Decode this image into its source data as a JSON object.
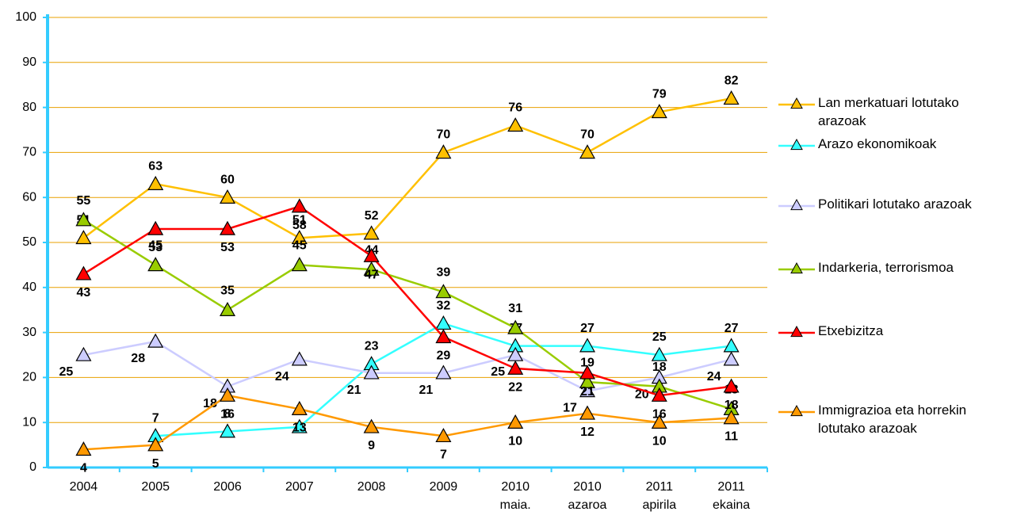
{
  "chart_data": {
    "type": "line",
    "categories": [
      [
        "2004"
      ],
      [
        "2005"
      ],
      [
        "2006"
      ],
      [
        "2007"
      ],
      [
        "2008"
      ],
      [
        "2009"
      ],
      [
        "2010",
        "maia."
      ],
      [
        "2010",
        "azaroa"
      ],
      [
        "2011",
        "apirila"
      ],
      [
        "2011",
        "ekaina"
      ]
    ],
    "series": [
      {
        "name": "Lan merkatuari lotutako arazoak",
        "color": "#ffc000",
        "values": [
          51,
          63,
          60,
          51,
          52,
          70,
          76,
          70,
          79,
          82
        ]
      },
      {
        "name": "Arazo ekonomikoak",
        "color": "#33ffff",
        "values": [
          null,
          7,
          8,
          9,
          23,
          32,
          27,
          27,
          25,
          27
        ]
      },
      {
        "name": "Politikari lotutako arazoak",
        "color": "#ccccff",
        "values": [
          25,
          28,
          18,
          24,
          21,
          21,
          25,
          17,
          20,
          24
        ]
      },
      {
        "name": "Indarkeria, terrorismoa",
        "color": "#99cc00",
        "values": [
          55,
          45,
          35,
          45,
          44,
          39,
          31,
          19,
          18,
          13
        ]
      },
      {
        "name": "Etxebizitza",
        "color": "#ff0000",
        "values": [
          43,
          53,
          53,
          58,
          47,
          29,
          22,
          21,
          16,
          18
        ]
      },
      {
        "name": "Immigrazioa eta horrekin lotutako arazoak",
        "color": "#ff9900",
        "values": [
          4,
          5,
          16,
          13,
          9,
          7,
          10,
          12,
          10,
          11
        ]
      }
    ],
    "ylim": [
      0,
      100
    ],
    "yticks": [
      0,
      10,
      20,
      30,
      40,
      50,
      60,
      70,
      80,
      90,
      100
    ],
    "grid": true
  }
}
